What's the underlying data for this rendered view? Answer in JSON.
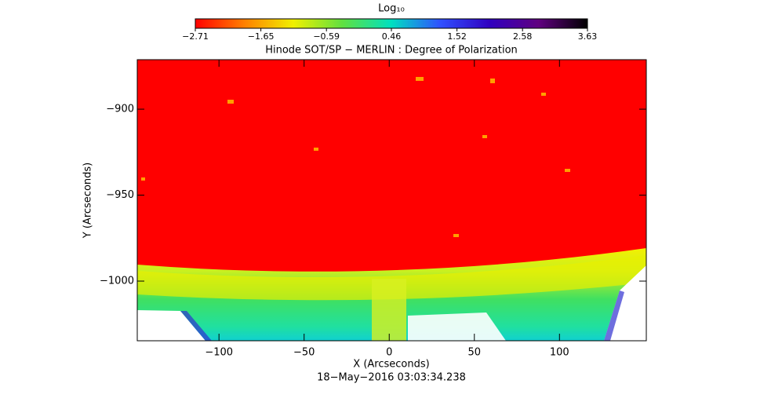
{
  "chart_data": {
    "type": "image",
    "title": "Hinode SOT/SP − MERLIN : Degree of Polarization",
    "x_label": "X (Arcseconds)",
    "y_label": "Y (Arcseconds)",
    "date": "18−May−2016 03:03:34.238",
    "colorbar_label": "Log₁₀",
    "colorbar_lim": [
      -2.71,
      3.63
    ],
    "colorbar_ticks": [
      {
        "value": -2.71,
        "label": "−2.71"
      },
      {
        "value": -1.65,
        "label": "−1.65"
      },
      {
        "value": -0.59,
        "label": "−0.59"
      },
      0.46,
      1.52,
      2.58,
      3.63
    ],
    "colormap": [
      "#ff0000",
      "#ff8000",
      "#f0f000",
      "#60e040",
      "#00e0c0",
      "#3050ff",
      "#3000c0",
      "#600080",
      "#000000"
    ],
    "xlim": [
      -148,
      151
    ],
    "ylim": [
      -1034.7,
      -871.2
    ],
    "xticks": [
      {
        "value": -100,
        "label": "−100"
      },
      {
        "value": -50,
        "label": "−50"
      },
      0,
      50,
      100
    ],
    "yticks": [
      {
        "value": -900,
        "label": "−900"
      },
      {
        "value": -950,
        "label": "−950"
      },
      {
        "value": -1000,
        "label": "−1000"
      }
    ]
  }
}
